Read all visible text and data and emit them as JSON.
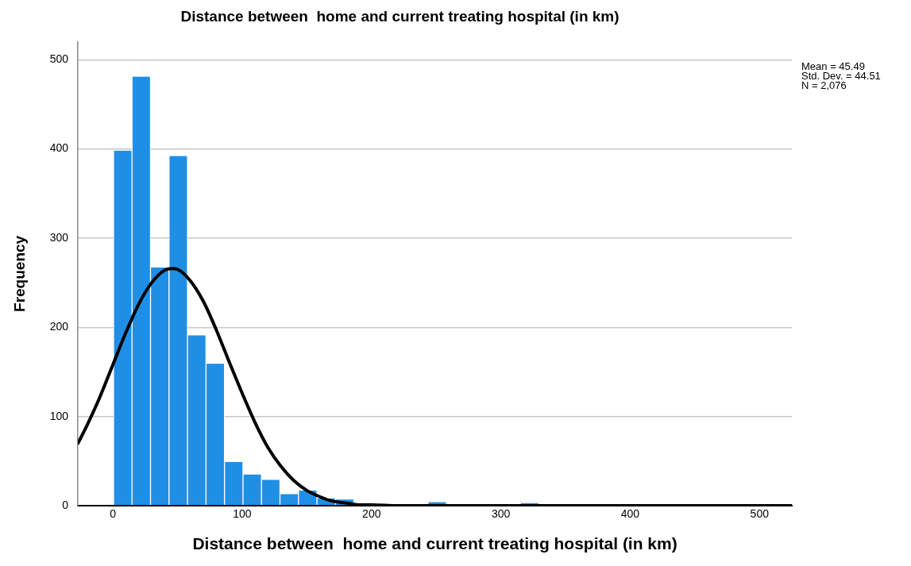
{
  "chart_data": {
    "type": "histogram",
    "title": "Distance between  home and current treating hospital (in km)",
    "xlabel": "Distance between  home and current treating hospital (in km)",
    "ylabel": "Frequency",
    "bins": [
      0.5,
      14.8,
      29.1,
      43.4,
      57.7,
      72,
      86.3,
      100.6,
      114.9,
      129.2,
      143.5,
      157.8,
      172.1,
      186.4,
      200.7,
      215,
      229.3,
      243.6,
      257.9,
      272.2,
      286.5,
      300.8,
      315.1,
      329.4
    ],
    "values": [
      398,
      481,
      267,
      392,
      191,
      159,
      49,
      35,
      29,
      13,
      17,
      8,
      7,
      0,
      0,
      0,
      0,
      4,
      0,
      0,
      0,
      0,
      3
    ],
    "color": "#1f8fe6",
    "series": [
      {
        "type": "line",
        "color": "#000000",
        "x": [
          -27,
          -20,
          -10,
          0,
          10,
          20,
          30,
          40,
          45.49,
          50,
          60,
          70,
          80,
          90,
          100,
          110,
          120,
          130,
          140,
          150,
          160,
          170,
          180,
          190,
          200,
          220,
          250,
          525
        ],
        "values": [
          70,
          90,
          122,
          158,
          194,
          226,
          250,
          264,
          266,
          265,
          252,
          229,
          197,
          161,
          126,
          93,
          65,
          44,
          28,
          17,
          10,
          5,
          3,
          1,
          1,
          0,
          0,
          0
        ]
      }
    ],
    "xlim": [
      -27,
      525
    ],
    "ylim": [
      0,
      520
    ],
    "xticks": [
      0,
      100,
      200,
      300,
      400,
      500
    ],
    "yticks": [
      0,
      100,
      200,
      300,
      400,
      500
    ],
    "grid": "y",
    "legend": false,
    "marker": "none",
    "line_style": "solid",
    "annotations": [
      "Mean = 45.49",
      "Std. Dev. = 44.51",
      "N = 2,076"
    ]
  }
}
